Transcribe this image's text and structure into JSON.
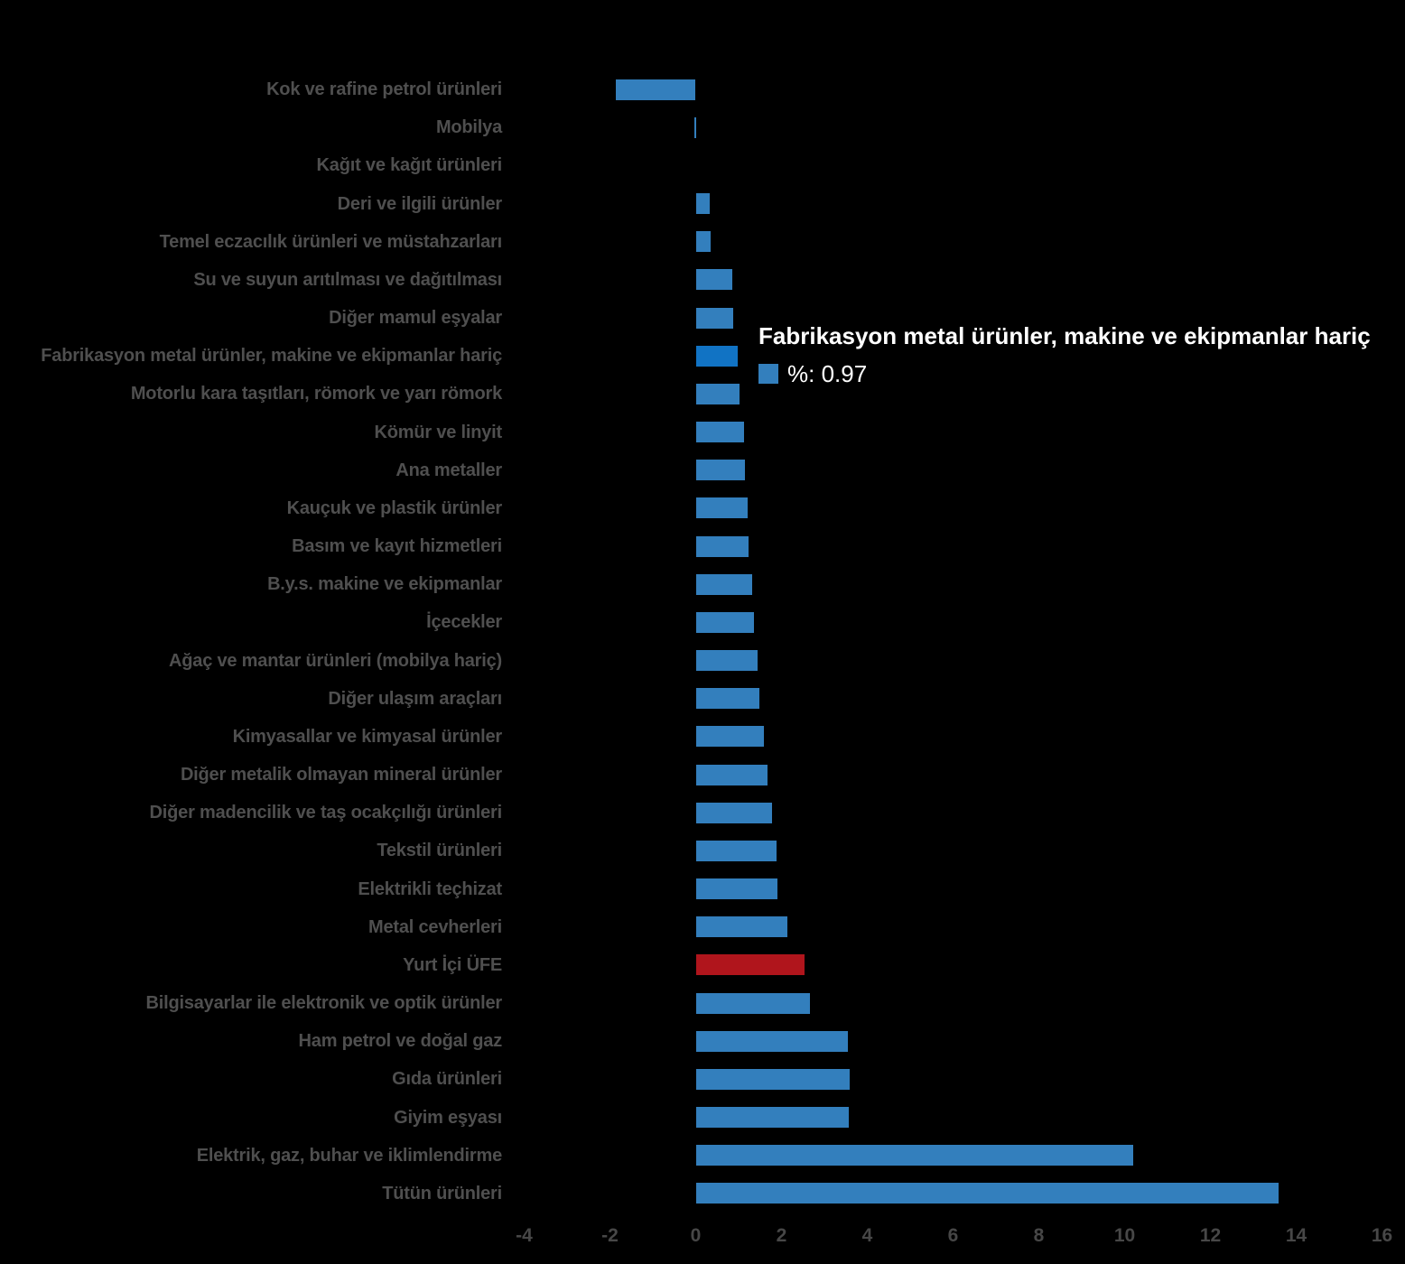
{
  "chart_data": {
    "type": "bar",
    "orientation": "horizontal",
    "title": "",
    "xlabel": "",
    "ylabel": "",
    "xlim": [
      -4,
      16
    ],
    "xticks": [
      -4,
      -2,
      0,
      2,
      4,
      6,
      8,
      10,
      12,
      14,
      16
    ],
    "grid": false,
    "value_unit": "%",
    "categories": [
      "Kok ve rafine petrol ürünleri",
      "Mobilya",
      "Kağıt ve kağıt ürünleri",
      "Deri ve ilgili ürünler",
      "Temel eczacılık ürünleri ve müstahzarları",
      "Su ve suyun arıtılması ve dağıtılması",
      "Diğer mamul eşyalar",
      "Fabrikasyon metal ürünler, makine ve ekipmanlar hariç",
      "Motorlu kara taşıtları, römork ve yarı römork",
      "Kömür ve linyit",
      "Ana metaller",
      "Kauçuk ve plastik ürünler",
      "Basım ve kayıt hizmetleri",
      "B.y.s. makine ve ekipmanlar",
      "İçecekler",
      "Ağaç ve mantar ürünleri (mobilya hariç)",
      "Diğer ulaşım araçları",
      "Kimyasallar ve kimyasal ürünler",
      "Diğer metalik olmayan mineral ürünler",
      "Diğer madencilik ve taş ocakçılığı ürünleri",
      "Tekstil ürünleri",
      "Elektrikli teçhizat",
      "Metal cevherleri",
      "Yurt İçi ÜFE",
      "Bilgisayarlar ile elektronik ve optik ürünler",
      "Ham petrol ve doğal gaz",
      "Gıda ürünleri",
      "Giyim eşyası",
      "Elektrik, gaz, buhar ve iklimlendirme",
      "Tütün ürünleri"
    ],
    "values": [
      -1.86,
      -0.04,
      0.0,
      0.33,
      0.35,
      0.85,
      0.88,
      0.97,
      1.03,
      1.13,
      1.14,
      1.22,
      1.24,
      1.31,
      1.36,
      1.44,
      1.48,
      1.59,
      1.67,
      1.78,
      1.88,
      1.91,
      2.14,
      2.53,
      2.66,
      3.55,
      3.58,
      3.56,
      10.21,
      13.59
    ],
    "bar_roles": [
      "default",
      "default",
      "default",
      "default",
      "default",
      "default",
      "default",
      "highlight",
      "default",
      "default",
      "default",
      "default",
      "default",
      "default",
      "default",
      "default",
      "default",
      "default",
      "default",
      "default",
      "default",
      "default",
      "default",
      "ufe",
      "default",
      "default",
      "default",
      "default",
      "default",
      "default"
    ],
    "colors": {
      "default": "#337fbd",
      "highlight": "#1173c4",
      "ufe": "#b0151c",
      "label": "#4f4f4f",
      "tick": "#474747",
      "background": "#000000"
    }
  },
  "tooltip": {
    "title": "Fabrikasyon metal ürünler, makine ve ekipmanlar hariç",
    "series_label": "%",
    "value": "0.97",
    "display": "%: 0.97",
    "swatch_color": "#337fbd"
  }
}
